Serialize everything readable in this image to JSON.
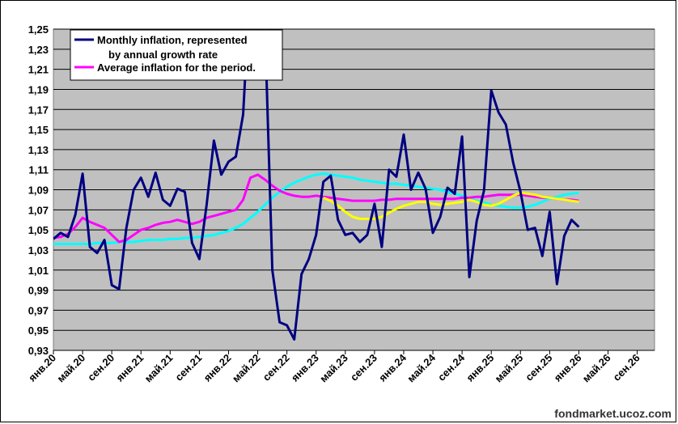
{
  "chart_data": {
    "type": "line",
    "ylim": [
      0.93,
      1.25
    ],
    "y_ticks": [
      "0,93",
      "0,95",
      "0,97",
      "0,99",
      "1,01",
      "1,03",
      "1,05",
      "1,07",
      "1,09",
      "1,11",
      "1,13",
      "1,15",
      "1,17",
      "1,19",
      "1,21",
      "1,23",
      "1,25"
    ],
    "x_ticks": [
      "янв.20",
      "май.20",
      "сен.20",
      "янв.21",
      "май.21",
      "сен.21",
      "янв.22",
      "май.22",
      "сен.22",
      "янв.23",
      "май.23",
      "сен.23",
      "янв.24",
      "май.24",
      "сен.24",
      "янв.25",
      "май.25",
      "сен.25",
      "янв.26",
      "май.26",
      "сен.26"
    ],
    "grid": true,
    "plot_background": "#c0c0c0",
    "legend_position": "top-left",
    "legend": [
      {
        "label": "Monthly inflation, represented",
        "label_line2": "by  annual growth rate",
        "color": "#000080"
      },
      {
        "label": "Average inflation for the period.",
        "color": "#ff00ff"
      }
    ],
    "watermark": "fondmarket.ucoz.com",
    "series": [
      {
        "name": "Monthly inflation, represented by annual growth rate",
        "color": "#000080",
        "start_month": 0,
        "values": [
          1.041,
          1.047,
          1.043,
          1.065,
          1.106,
          1.033,
          1.027,
          1.04,
          0.995,
          0.991,
          1.052,
          1.09,
          1.102,
          1.083,
          1.107,
          1.08,
          1.074,
          1.091,
          1.088,
          1.037,
          1.021,
          1.075,
          1.139,
          1.105,
          1.118,
          1.123,
          1.165,
          1.3,
          1.3,
          1.25,
          1.01,
          0.958,
          0.955,
          0.941,
          1.006,
          1.021,
          1.045,
          1.098,
          1.104,
          1.06,
          1.045,
          1.047,
          1.038,
          1.045,
          1.076,
          1.033,
          1.11,
          1.103,
          1.145,
          1.09,
          1.107,
          1.091,
          1.047,
          1.063,
          1.092,
          1.086,
          1.143,
          1.003,
          1.059,
          1.089,
          1.189,
          1.167,
          1.155,
          1.117,
          1.088,
          1.05,
          1.052,
          1.024,
          1.068,
          0.996,
          1.044,
          1.06,
          1.053
        ]
      },
      {
        "name": "Average inflation for the period.",
        "color": "#ff00ff",
        "start_month": 0,
        "values": [
          1.042,
          1.043,
          1.046,
          1.053,
          1.062,
          1.058,
          1.055,
          1.052,
          1.045,
          1.038,
          1.04,
          1.045,
          1.05,
          1.052,
          1.055,
          1.057,
          1.058,
          1.06,
          1.058,
          1.056,
          1.058,
          1.062,
          1.064,
          1.066,
          1.068,
          1.07,
          1.08,
          1.102,
          1.105,
          1.1,
          1.094,
          1.089,
          1.086,
          1.084,
          1.083,
          1.083,
          1.084,
          1.083,
          1.082,
          1.081,
          1.08,
          1.079,
          1.079,
          1.079,
          1.079,
          1.08,
          1.08,
          1.081,
          1.081,
          1.081,
          1.081,
          1.081,
          1.081,
          1.081,
          1.081,
          1.081,
          1.082,
          1.082,
          1.083,
          1.083,
          1.084,
          1.085,
          1.085,
          1.085,
          1.085,
          1.084,
          1.083,
          1.082,
          1.082,
          1.081,
          1.08,
          1.08,
          1.079
        ]
      },
      {
        "name": "yellow series",
        "color": "#ffff00",
        "start_month": 37,
        "values": [
          1.082,
          1.079,
          1.074,
          1.068,
          1.063,
          1.061,
          1.061,
          1.061,
          1.063,
          1.067,
          1.071,
          1.074,
          1.076,
          1.078,
          1.078,
          1.076,
          1.075,
          1.076,
          1.077,
          1.078,
          1.08,
          1.078,
          1.075,
          1.074,
          1.076,
          1.08,
          1.084,
          1.087,
          1.086,
          1.085,
          1.083,
          1.082,
          1.081,
          1.08,
          1.079,
          1.078
        ]
      },
      {
        "name": "cyan series",
        "color": "#00ffff",
        "start_month": 0,
        "values": [
          1.036,
          1.036,
          1.036,
          1.036,
          1.036,
          1.036,
          1.037,
          1.037,
          1.037,
          1.038,
          1.038,
          1.038,
          1.039,
          1.04,
          1.04,
          1.04,
          1.041,
          1.041,
          1.042,
          1.042,
          1.043,
          1.044,
          1.045,
          1.047,
          1.049,
          1.052,
          1.056,
          1.062,
          1.068,
          1.075,
          1.082,
          1.088,
          1.093,
          1.097,
          1.1,
          1.103,
          1.105,
          1.106,
          1.105,
          1.104,
          1.103,
          1.102,
          1.1,
          1.099,
          1.098,
          1.097,
          1.096,
          1.096,
          1.095,
          1.094,
          1.093,
          1.092,
          1.091,
          1.09,
          1.088,
          1.086,
          1.084,
          1.081,
          1.079,
          1.077,
          1.075,
          1.074,
          1.073,
          1.072,
          1.072,
          1.073,
          1.075,
          1.078,
          1.081,
          1.083,
          1.085,
          1.086,
          1.087
        ]
      }
    ]
  }
}
